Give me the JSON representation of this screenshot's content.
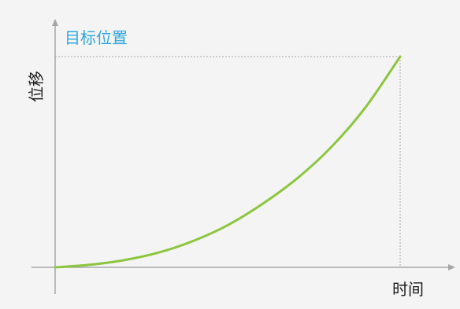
{
  "chart_data": {
    "type": "line",
    "title": "",
    "xlabel": "时间",
    "ylabel": "位移",
    "annotation": "目标位置",
    "xlim": [
      0,
      1
    ],
    "ylim": [
      0,
      1
    ],
    "grid": false,
    "series": [
      {
        "color": "#8cc63f",
        "x": [
          0,
          0.1,
          0.2,
          0.3,
          0.4,
          0.5,
          0.6,
          0.7,
          0.8,
          0.9,
          1.0
        ],
        "y": [
          0,
          0.012,
          0.034,
          0.07,
          0.125,
          0.2,
          0.3,
          0.42,
          0.57,
          0.76,
          1.0
        ]
      }
    ],
    "colors": {
      "axis": "#a6a6a6",
      "guide": "#a8a8a8",
      "annotation": "#2ea6de",
      "label": "#1a1a1a",
      "curve": "#8cc63f"
    }
  }
}
